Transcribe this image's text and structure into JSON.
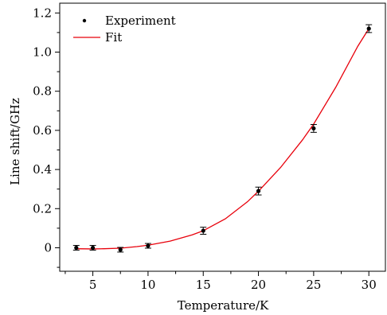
{
  "chart_data": {
    "type": "scatter",
    "title": "",
    "xlabel": "Temperature/K",
    "ylabel": "Line shift/GHz",
    "xlim": [
      2,
      31.5
    ],
    "ylim": [
      -0.12,
      1.25
    ],
    "xticks": [
      5,
      10,
      15,
      20,
      25,
      30
    ],
    "xtick_labels": [
      "5",
      "10",
      "15",
      "20",
      "25",
      "30"
    ],
    "yticks": [
      0,
      0.2,
      0.4,
      0.6,
      0.8,
      1.0,
      1.2
    ],
    "ytick_labels": [
      "0",
      "0.2",
      "0.4",
      "0.6",
      "0.8",
      "1.0",
      "1.2"
    ],
    "legend_position": "top-left",
    "grid": false,
    "series": [
      {
        "name": "Experiment",
        "kind": "scatter-errorbar",
        "color": "#000000",
        "points": [
          {
            "x": 3.5,
            "y": 0.0,
            "err": 0.012
          },
          {
            "x": 5,
            "y": 0.0,
            "err": 0.012
          },
          {
            "x": 7.5,
            "y": -0.01,
            "err": 0.012
          },
          {
            "x": 10,
            "y": 0.01,
            "err": 0.012
          },
          {
            "x": 15,
            "y": 0.087,
            "err": 0.018
          },
          {
            "x": 20,
            "y": 0.29,
            "err": 0.02
          },
          {
            "x": 25,
            "y": 0.61,
            "err": 0.02
          },
          {
            "x": 30,
            "y": 1.12,
            "err": 0.02
          }
        ]
      },
      {
        "name": "Fit",
        "kind": "line",
        "color": "#e8000b",
        "x": [
          3.5,
          5,
          6,
          7.5,
          9,
          10,
          12,
          14,
          15,
          17,
          19,
          20,
          22,
          24,
          25,
          27,
          29,
          30
        ],
        "y": [
          -0.005,
          -0.006,
          -0.005,
          -0.002,
          0.006,
          0.013,
          0.034,
          0.066,
          0.087,
          0.148,
          0.235,
          0.289,
          0.41,
          0.552,
          0.632,
          0.82,
          1.03,
          1.12
        ]
      }
    ]
  }
}
